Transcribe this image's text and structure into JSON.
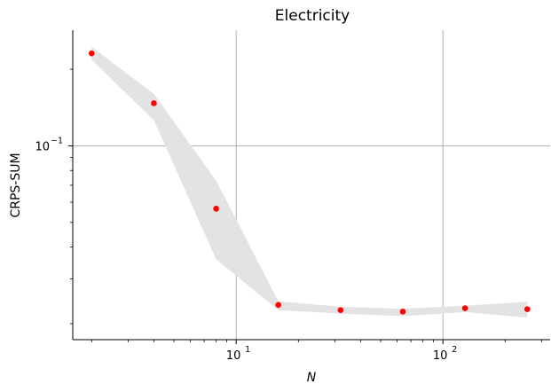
{
  "chart_data": {
    "type": "scatter",
    "title": "Electricity",
    "xlabel": "N",
    "ylabel": "CRPS-SUM",
    "x_scale": "log",
    "y_scale": "log",
    "xlim": [
      1.62,
      330
    ],
    "ylim": [
      0.0173,
      0.285
    ],
    "grid": true,
    "x_ticks": [
      {
        "value": 10,
        "label": "10",
        "exp": "1"
      },
      {
        "value": 100,
        "label": "10",
        "exp": "2"
      }
    ],
    "y_ticks": [
      {
        "value": 0.1,
        "label": "10",
        "exp": "−1"
      }
    ],
    "series": [
      {
        "color": "#ff0000",
        "points": [
          {
            "x": 2,
            "y": 0.231
          },
          {
            "x": 4,
            "y": 0.147
          },
          {
            "x": 8,
            "y": 0.0566
          },
          {
            "x": 16,
            "y": 0.0237
          },
          {
            "x": 32,
            "y": 0.0226
          },
          {
            "x": 64,
            "y": 0.0223
          },
          {
            "x": 128,
            "y": 0.023
          },
          {
            "x": 256,
            "y": 0.0228
          }
        ],
        "band_upper": [
          0.245,
          0.16,
          0.073,
          0.0245,
          0.0233,
          0.0229,
          0.0235,
          0.0244
        ],
        "band_lower": [
          0.218,
          0.126,
          0.0358,
          0.0226,
          0.0219,
          0.0214,
          0.0222,
          0.0211
        ]
      }
    ],
    "band_color": "#e3e3e3"
  }
}
